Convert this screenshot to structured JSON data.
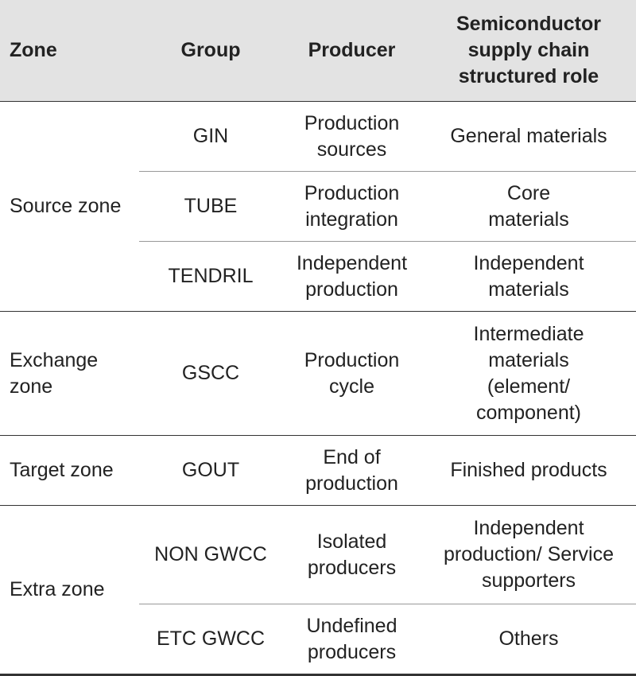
{
  "table": {
    "header": [
      "Zone",
      "Group",
      "Producer",
      "Semiconductor\nsupply chain\nstructured role"
    ],
    "zones": [
      {
        "zone": "Source zone",
        "groups": [
          {
            "group": "GIN",
            "producer": "Production\nsources",
            "role": "General materials"
          },
          {
            "group": "TUBE",
            "producer": "Production\nintegration",
            "role": "Core\nmaterials"
          },
          {
            "group": "TENDRIL",
            "producer": "Independent\nproduction",
            "role": "Independent\nmaterials"
          }
        ]
      },
      {
        "zone": "Exchange\nzone",
        "groups": [
          {
            "group": "GSCC",
            "producer": "Production\ncycle",
            "role": "Intermediate\nmaterials\n(element/\ncomponent)"
          }
        ]
      },
      {
        "zone": "Target zone",
        "groups": [
          {
            "group": "GOUT",
            "producer": "End of\nproduction",
            "role": "Finished products"
          }
        ]
      },
      {
        "zone": "Extra zone",
        "groups": [
          {
            "group": "NON GWCC",
            "producer": "Isolated\nproducers",
            "role": "Independent\nproduction/ Service\nsupporters"
          },
          {
            "group": "ETC GWCC",
            "producer": "Undefined\nproducers",
            "role": "Others"
          }
        ]
      }
    ]
  }
}
